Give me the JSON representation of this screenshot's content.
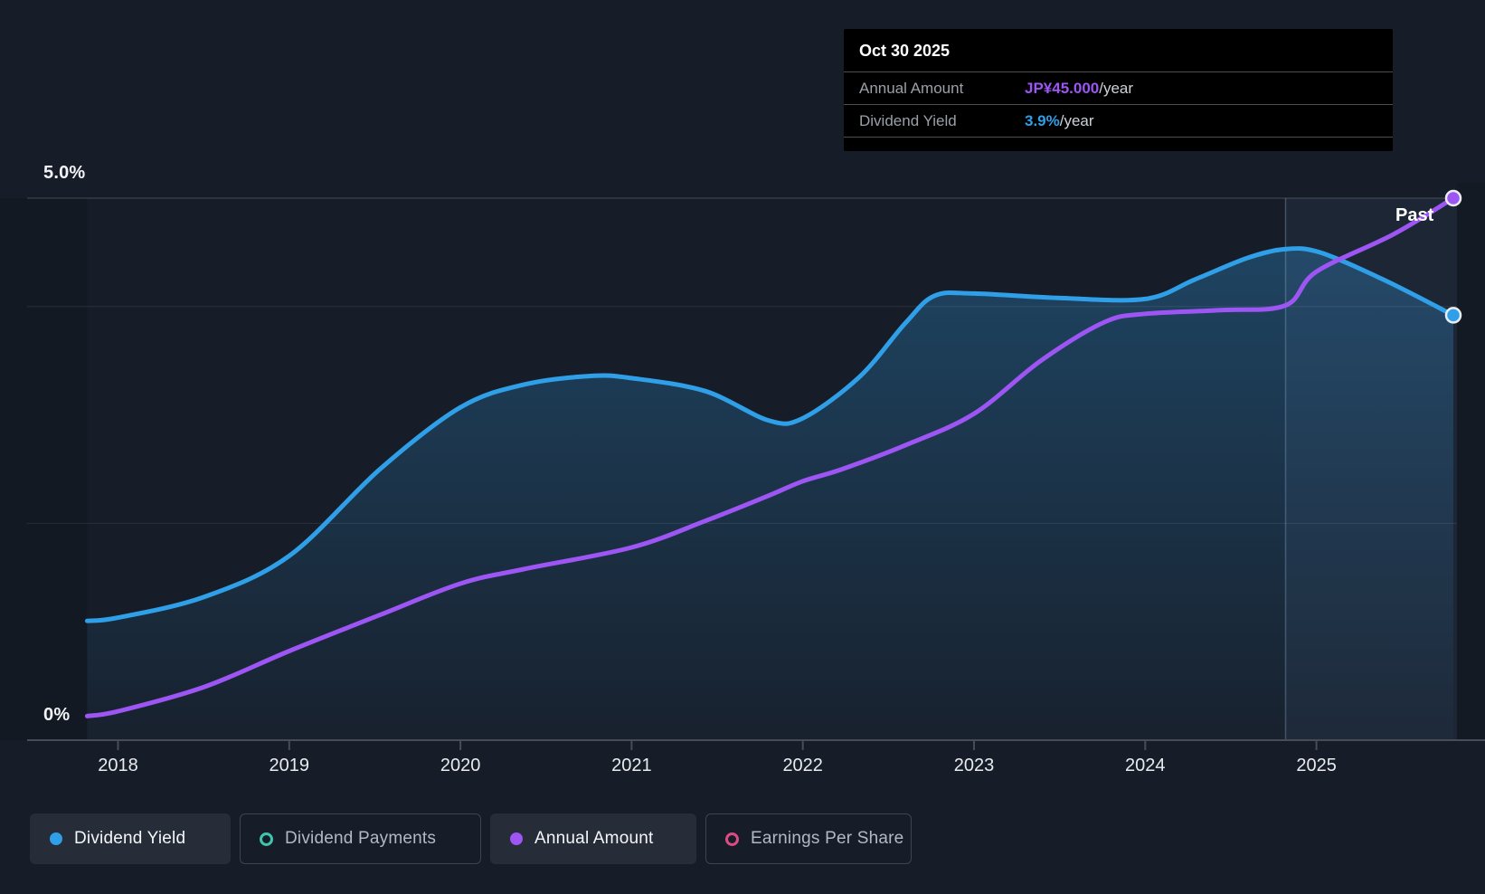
{
  "page": {
    "background": "#171d28"
  },
  "tooltip": {
    "date": "Oct 30 2025",
    "rows": [
      {
        "label": "Annual Amount",
        "value": "JP¥45.000",
        "suffix": "/year",
        "value_color": "#9d55f3"
      },
      {
        "label": "Dividend Yield",
        "value": "3.9%",
        "suffix": "/year",
        "value_color": "#2f9fe8"
      }
    ]
  },
  "chart_data": {
    "type": "line",
    "title": "Dividend yield and annual dividend amount history",
    "y_axis": {
      "top_label": "5.0%",
      "bottom_label": "0%",
      "min": 0,
      "max": 5.0,
      "unit": "%"
    },
    "y_axis_amount": {
      "min": 0,
      "max": 45.0,
      "unit": "JP¥/year"
    },
    "x_axis": {
      "ticks": [
        "2018",
        "2019",
        "2020",
        "2021",
        "2022",
        "2023",
        "2024",
        "2025"
      ],
      "start": 2017.82,
      "end": 2025.8
    },
    "gridlines_yield": [
      5.0,
      4.0,
      2.0
    ],
    "past_label": "Past",
    "past_divider_year": 2024.82,
    "series": [
      {
        "name": "Dividend Yield",
        "axis": "yield",
        "color": "#2f9fe8",
        "area": true,
        "end_marker": true,
        "points": [
          [
            2017.82,
            1.1
          ],
          [
            2018.0,
            1.13
          ],
          [
            2018.5,
            1.32
          ],
          [
            2019.0,
            1.7
          ],
          [
            2019.53,
            2.5
          ],
          [
            2020.0,
            3.07
          ],
          [
            2020.37,
            3.28
          ],
          [
            2020.76,
            3.36
          ],
          [
            2021.0,
            3.34
          ],
          [
            2021.43,
            3.22
          ],
          [
            2021.8,
            2.95
          ],
          [
            2022.0,
            2.97
          ],
          [
            2022.33,
            3.35
          ],
          [
            2022.6,
            3.85
          ],
          [
            2022.77,
            4.1
          ],
          [
            2023.0,
            4.12
          ],
          [
            2023.49,
            4.08
          ],
          [
            2024.0,
            4.07
          ],
          [
            2024.29,
            4.25
          ],
          [
            2024.6,
            4.45
          ],
          [
            2024.82,
            4.53
          ],
          [
            2025.02,
            4.5
          ],
          [
            2025.39,
            4.25
          ],
          [
            2025.8,
            3.92
          ]
        ]
      },
      {
        "name": "Annual Amount",
        "axis": "amount",
        "color": "#9d55f3",
        "area": false,
        "end_marker": true,
        "points": [
          [
            2017.82,
            2.0
          ],
          [
            2018.0,
            2.4
          ],
          [
            2018.5,
            4.4
          ],
          [
            2019.0,
            7.4
          ],
          [
            2019.53,
            10.4
          ],
          [
            2020.0,
            13.0
          ],
          [
            2020.37,
            14.2
          ],
          [
            2021.0,
            16.0
          ],
          [
            2021.43,
            18.2
          ],
          [
            2021.8,
            20.3
          ],
          [
            2022.0,
            21.5
          ],
          [
            2022.23,
            22.5
          ],
          [
            2022.6,
            24.5
          ],
          [
            2023.0,
            27.1
          ],
          [
            2023.39,
            31.5
          ],
          [
            2023.76,
            34.7
          ],
          [
            2024.0,
            35.4
          ],
          [
            2024.44,
            35.7
          ],
          [
            2024.82,
            36.1
          ],
          [
            2025.0,
            38.9
          ],
          [
            2025.45,
            42.0
          ],
          [
            2025.8,
            45.0
          ]
        ]
      }
    ]
  },
  "legend": [
    {
      "label": "Dividend Yield",
      "color": "#2f9fe8",
      "marker": "filled",
      "active": true
    },
    {
      "label": "Dividend Payments",
      "color": "#3fc4ad",
      "marker": "ring",
      "active": false
    },
    {
      "label": "Annual Amount",
      "color": "#9d55f3",
      "marker": "filled",
      "active": true
    },
    {
      "label": "Earnings Per Share",
      "color": "#dd4b86",
      "marker": "ring",
      "active": false
    }
  ]
}
